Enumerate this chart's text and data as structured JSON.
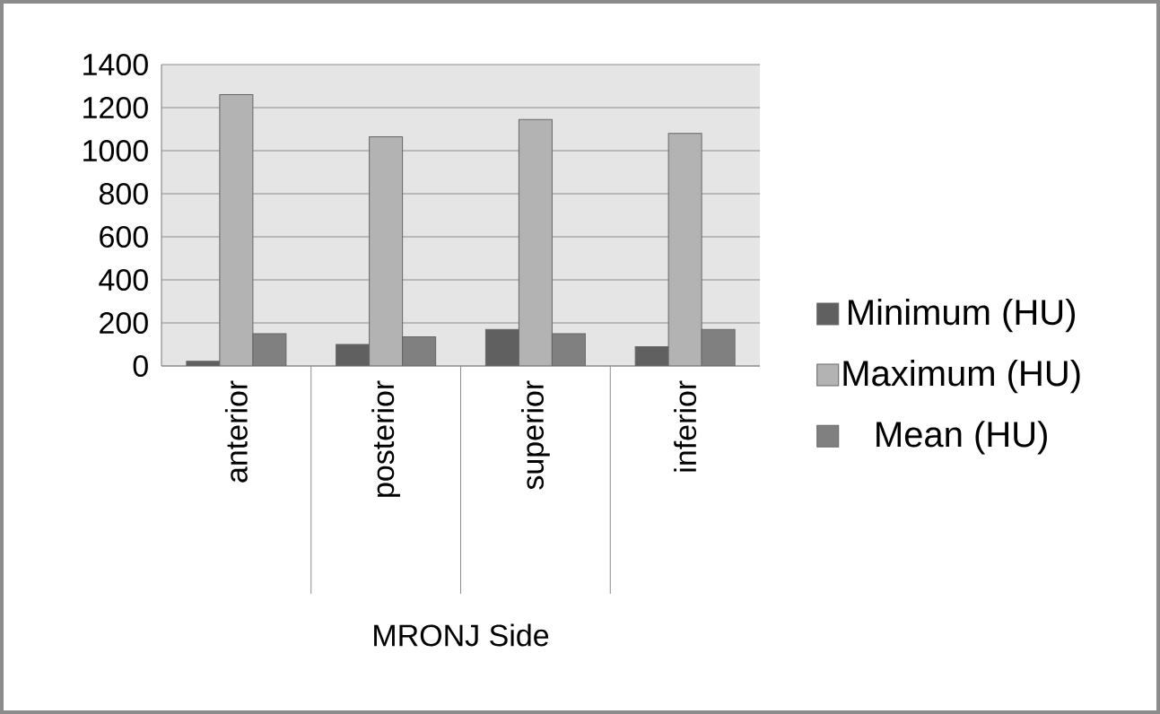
{
  "chart_data": {
    "type": "bar",
    "xlabel": "MRONJ Side",
    "categories": [
      "anterior",
      "posterior",
      "superior",
      "inferior"
    ],
    "series": [
      {
        "name": "Minimum (HU)",
        "color": "#606060",
        "values": [
          22,
          100,
          170,
          90
        ]
      },
      {
        "name": "Maximum (HU)",
        "color": "#b3b3b3",
        "values": [
          1260,
          1065,
          1145,
          1080
        ]
      },
      {
        "name": "Mean (HU)",
        "color": "#808080",
        "values": [
          150,
          135,
          150,
          170
        ]
      }
    ],
    "ylim": [
      0,
      1400
    ],
    "yticks": [
      0,
      200,
      400,
      600,
      800,
      1000,
      1200,
      1400
    ],
    "grid": "y",
    "legend": "right"
  }
}
